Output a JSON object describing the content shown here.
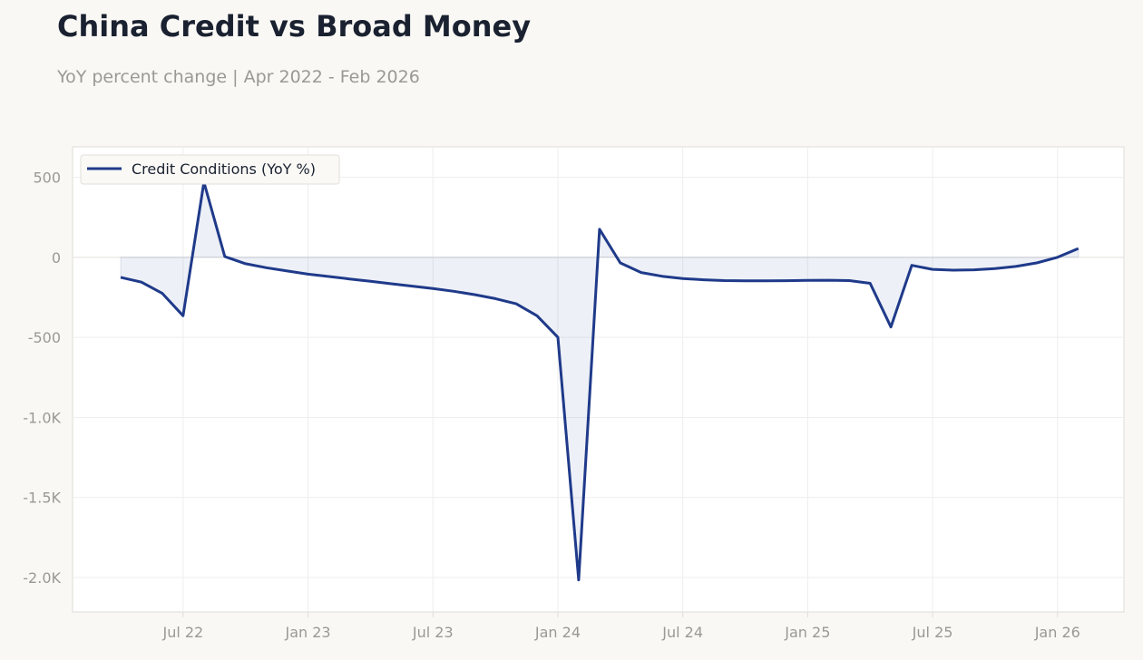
{
  "page": {
    "title": "China Credit vs Broad Money",
    "subtitle": "YoY percent change | Apr 2022 - Feb 2026"
  },
  "colors": {
    "line": "#1f3a8a",
    "fill": "#1f3a8a",
    "grid": "#eeeeee",
    "frame": "#e0ddd6",
    "tick": "#9a9994"
  },
  "chart_data": {
    "type": "area",
    "series": [
      {
        "name": "Credit Conditions (YoY %)",
        "x": [
          "2022-04",
          "2022-05",
          "2022-06",
          "2022-07",
          "2022-08",
          "2022-09",
          "2022-10",
          "2022-11",
          "2022-12",
          "2023-01",
          "2023-02",
          "2023-03",
          "2023-04",
          "2023-05",
          "2023-06",
          "2023-07",
          "2023-08",
          "2023-09",
          "2023-10",
          "2023-11",
          "2023-12",
          "2024-01",
          "2024-02",
          "2024-03",
          "2024-04",
          "2024-05",
          "2024-06",
          "2024-07",
          "2024-08",
          "2024-09",
          "2024-10",
          "2024-11",
          "2024-12",
          "2025-01",
          "2025-02",
          "2025-03",
          "2025-04",
          "2025-05",
          "2025-06",
          "2025-07",
          "2025-08",
          "2025-09",
          "2025-10",
          "2025-11",
          "2025-12",
          "2026-01",
          "2026-02"
        ],
        "values": [
          -125,
          -155,
          -225,
          -365,
          470,
          5,
          -40,
          -65,
          -85,
          -105,
          -120,
          -135,
          -150,
          -165,
          -180,
          -195,
          -212,
          -233,
          -258,
          -290,
          -365,
          -500,
          -2015,
          175,
          -35,
          -95,
          -118,
          -132,
          -140,
          -145,
          -147,
          -147,
          -146,
          -144,
          -143,
          -145,
          -162,
          -435,
          -50,
          -75,
          -80,
          -78,
          -70,
          -57,
          -35,
          0,
          55
        ]
      }
    ],
    "x_ticks": [
      "Jul 22",
      "Jan 23",
      "Jul 23",
      "Jan 24",
      "Jul 24",
      "Jan 25",
      "Jul 25",
      "Jan 26"
    ],
    "x_tick_dates": [
      "2022-07",
      "2023-01",
      "2023-07",
      "2024-01",
      "2024-07",
      "2025-01",
      "2025-07",
      "2026-01"
    ],
    "y_ticks": [
      {
        "value": 500,
        "label": "500"
      },
      {
        "value": 0,
        "label": "0"
      },
      {
        "value": -500,
        "label": "-500"
      },
      {
        "value": -1000,
        "label": "-1.0K"
      },
      {
        "value": -1500,
        "label": "-1.5K"
      },
      {
        "value": -2000,
        "label": "-2.0K"
      }
    ],
    "ylim": [
      -2215,
      690
    ],
    "grid": true,
    "legend": "top-left"
  }
}
